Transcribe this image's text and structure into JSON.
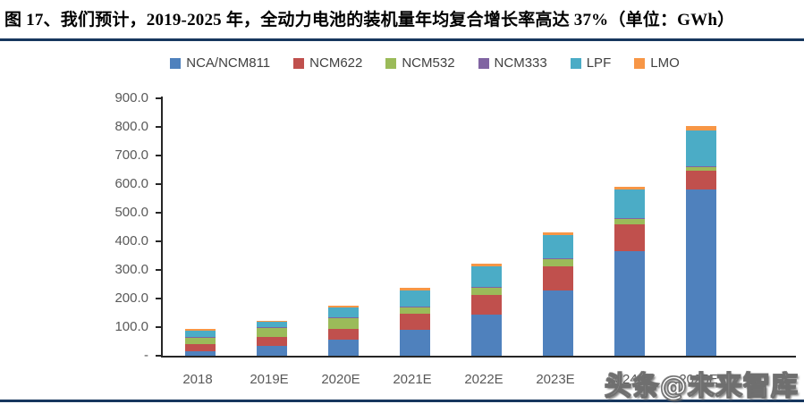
{
  "page": {
    "title": "图 17、我们预计，2019-2025 年，全动力电池的装机量年均复合增长率高达 37%（单位：GWh）",
    "watermark": "头条@未来智库",
    "accent_rule_color": "#17375E",
    "axis_color": "#262626",
    "tick_label_color": "#595959"
  },
  "chart_data": {
    "type": "bar",
    "stacked": true,
    "title": "图 17、我们预计，2019-2025 年，全动力电池的装机量年均复合增长率高达 37%（单位：GWh）",
    "unit": "GWh",
    "categories": [
      "2018",
      "2019E",
      "2020E",
      "2021E",
      "2022E",
      "2023E",
      "2024E",
      "2025E"
    ],
    "series": [
      {
        "name": "NCA/NCM811",
        "color": "#4F81BD",
        "values": [
          17,
          33,
          55,
          91,
          144,
          229,
          365,
          580
        ]
      },
      {
        "name": "NCM622",
        "color": "#C0504D",
        "values": [
          24,
          33,
          40,
          55,
          68,
          85,
          95,
          66
        ]
      },
      {
        "name": "NCM532",
        "color": "#9BBB59",
        "values": [
          22,
          32,
          38,
          23,
          27,
          26,
          18,
          16
        ]
      },
      {
        "name": "NCM333",
        "color": "#8064A2",
        "values": [
          3,
          2,
          2,
          2,
          2,
          2,
          2,
          2
        ]
      },
      {
        "name": "LPF",
        "color": "#4BACC6",
        "values": [
          22,
          20,
          34,
          57,
          71,
          81,
          100,
          125
        ]
      },
      {
        "name": "LMO",
        "color": "#F79646",
        "values": [
          6,
          3,
          7,
          10,
          11,
          9,
          12,
          15
        ]
      }
    ],
    "totals": [
      94,
      123,
      176,
      238,
      323,
      432,
      592,
      804
    ],
    "ylim": [
      0,
      900
    ],
    "ytick_step": 100,
    "ytick_labels": [
      "-",
      "100.0",
      "200.0",
      "300.0",
      "400.0",
      "500.0",
      "600.0",
      "700.0",
      "800.0",
      "900.0"
    ],
    "legend_position": "top",
    "grid": false
  }
}
